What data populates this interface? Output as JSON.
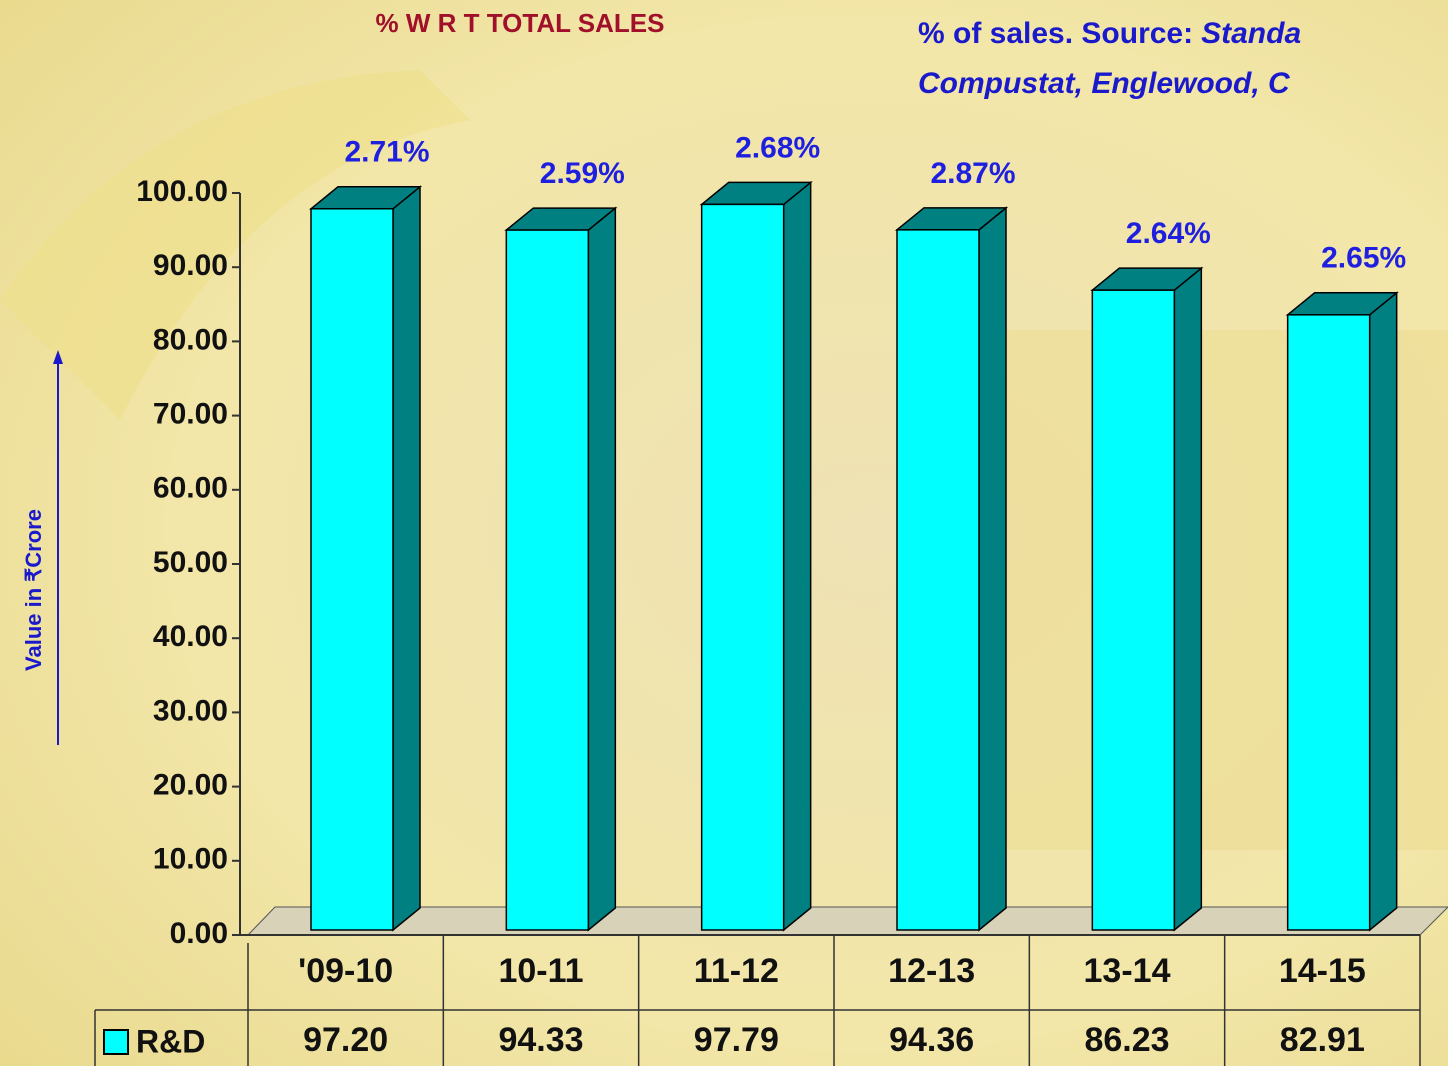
{
  "chart_data": {
    "type": "bar3d",
    "title": "% W R T TOTAL SALES",
    "source_note": [
      "% of sales. Source:",
      "Standa",
      "Compustat, Englewood, C"
    ],
    "y_label": "Value in ₹Crore",
    "categories": [
      "'09-10",
      "10-11",
      "11-12",
      "12-13",
      "13-14",
      "14-15"
    ],
    "series": [
      {
        "name": "R&D",
        "color": "#00ffff",
        "side_color": "#008080",
        "values": [
          97.2,
          94.33,
          97.79,
          94.36,
          86.23,
          82.91
        ],
        "value_labels": [
          "97.20",
          "94.33",
          "97.79",
          "94.36",
          "86.23",
          "82.91"
        ]
      }
    ],
    "annotations": [
      "2.71%",
      "2.59%",
      "2.68%",
      "2.87%",
      "2.64%",
      "2.65%"
    ],
    "ylim": [
      0,
      100
    ],
    "yticks": [
      {
        "value": 0,
        "label": "0.00"
      },
      {
        "value": 10,
        "label": "10.00"
      },
      {
        "value": 20,
        "label": "20.00"
      },
      {
        "value": 30,
        "label": "30.00"
      },
      {
        "value": 40,
        "label": "40.00"
      },
      {
        "value": 50,
        "label": "50.00"
      },
      {
        "value": 60,
        "label": "60.00"
      },
      {
        "value": 70,
        "label": "70.00"
      },
      {
        "value": 80,
        "label": "80.00"
      },
      {
        "value": 90,
        "label": "90.00"
      },
      {
        "value": 100,
        "label": "100.00"
      }
    ]
  }
}
